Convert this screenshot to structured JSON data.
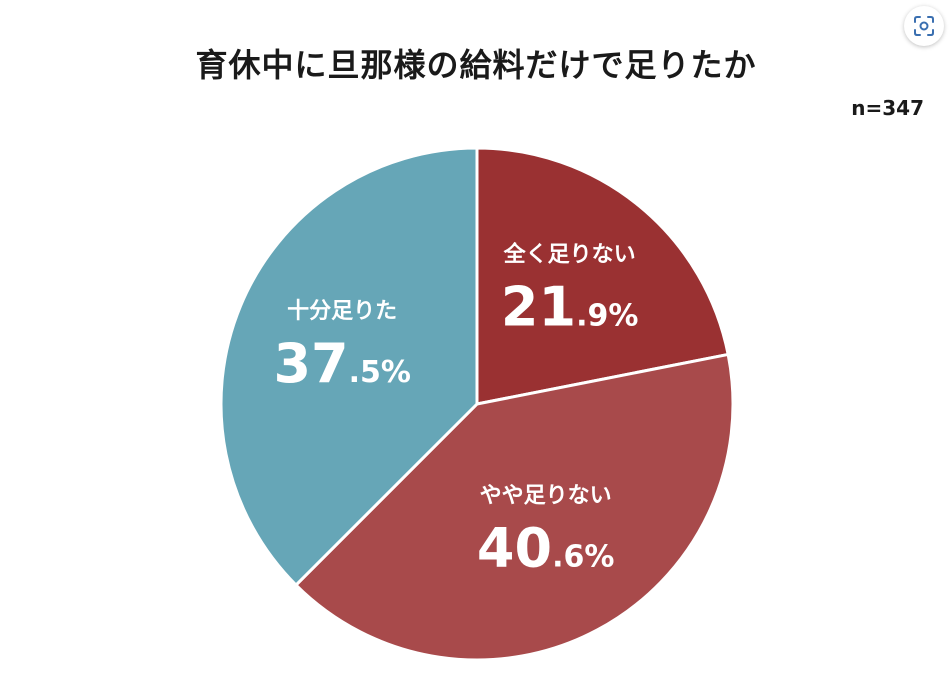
{
  "chart_data": {
    "type": "pie",
    "title": "育休中に旦那様の給料だけで足りたか",
    "sample_size": "n=347",
    "slices": [
      {
        "label": "全く足りない",
        "value": 21.9,
        "int_part": "21",
        "dec_part": ".9%",
        "color": "#9a3132"
      },
      {
        "label": "やや足りない",
        "value": 40.6,
        "int_part": "40",
        "dec_part": ".6%",
        "color": "#a84a4b"
      },
      {
        "label": "十分足りた",
        "value": 37.5,
        "int_part": "37",
        "dec_part": ".5%",
        "color": "#66a6b7"
      }
    ],
    "start": "12 o'clock",
    "direction": "clockwise",
    "label_color": "#ffffff"
  },
  "toolbar": {
    "scan_icon": "scan-icon"
  }
}
